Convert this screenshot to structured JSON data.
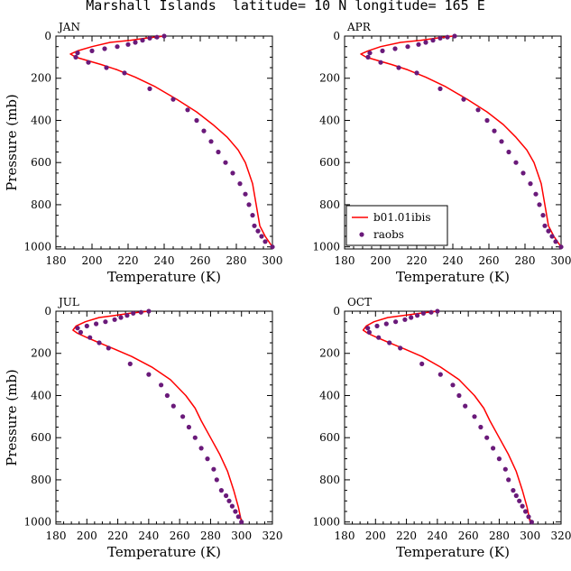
{
  "title": "Marshall Islands  latitude= 10 N longitude= 165 E",
  "colors": {
    "model": "#ff0000",
    "obs": "#6a1a7a",
    "axis": "#000000"
  },
  "chart_data": [
    {
      "type": "line",
      "panel": "JAN",
      "xlabel": "Temperature (K)",
      "ylabel": "Pressure (mb)",
      "xlim": [
        180,
        300
      ],
      "ylim": [
        1010,
        0
      ],
      "yreversed": true,
      "xticks": [
        180,
        200,
        220,
        240,
        260,
        280,
        300
      ],
      "yticks": [
        0,
        200,
        400,
        600,
        800,
        1000
      ],
      "legend": null,
      "series": [
        {
          "name": "b01.01ibis",
          "kind": "line",
          "x": [
            240,
            230,
            221,
            210,
            200,
            192,
            188,
            191,
            197,
            205,
            214,
            224,
            235,
            247,
            258,
            267,
            275,
            281,
            285,
            287,
            289,
            291,
            293,
            296,
            300
          ],
          "y": [
            0,
            10,
            20,
            30,
            50,
            70,
            85,
            100,
            115,
            135,
            160,
            195,
            240,
            300,
            360,
            420,
            480,
            540,
            600,
            650,
            700,
            800,
            900,
            950,
            1000
          ]
        },
        {
          "name": "raobs",
          "kind": "scatter",
          "x": [
            240,
            236,
            232,
            228,
            224,
            220,
            214,
            207,
            200,
            192,
            191,
            198,
            208,
            218,
            232,
            245,
            253,
            258,
            262,
            266,
            270,
            274,
            278,
            282,
            285,
            287,
            289,
            290,
            292,
            294,
            296,
            300
          ],
          "y": [
            0,
            5,
            10,
            20,
            30,
            40,
            50,
            60,
            70,
            80,
            100,
            125,
            150,
            175,
            250,
            300,
            350,
            400,
            450,
            500,
            550,
            600,
            650,
            700,
            750,
            800,
            850,
            900,
            925,
            950,
            975,
            1000
          ]
        }
      ]
    },
    {
      "type": "line",
      "panel": "APR",
      "xlabel": "Temperature (K)",
      "ylabel": "",
      "xlim": [
        180,
        300
      ],
      "ylim": [
        1010,
        0
      ],
      "yreversed": true,
      "xticks": [
        180,
        200,
        220,
        240,
        260,
        280,
        300
      ],
      "yticks": [
        0,
        200,
        400,
        600,
        800,
        1000
      ],
      "legend": "bottom-left",
      "series": [
        {
          "name": "b01.01ibis",
          "kind": "line",
          "x": [
            240,
            231,
            222,
            211,
            200,
            193,
            189,
            192,
            198,
            206,
            215,
            225,
            236,
            248,
            259,
            268,
            275,
            281,
            285,
            287,
            289,
            291,
            293,
            296,
            300
          ],
          "y": [
            0,
            10,
            20,
            30,
            50,
            70,
            85,
            100,
            115,
            135,
            160,
            195,
            240,
            300,
            360,
            420,
            480,
            540,
            600,
            650,
            700,
            800,
            900,
            950,
            1000
          ]
        },
        {
          "name": "raobs",
          "kind": "scatter",
          "x": [
            241,
            237,
            233,
            229,
            225,
            221,
            215,
            208,
            201,
            194,
            193,
            200,
            210,
            220,
            233,
            246,
            254,
            259,
            263,
            267,
            271,
            275,
            279,
            283,
            286,
            288,
            290,
            291,
            293,
            295,
            297,
            300
          ],
          "y": [
            0,
            5,
            10,
            20,
            30,
            40,
            50,
            60,
            70,
            80,
            100,
            125,
            150,
            175,
            250,
            300,
            350,
            400,
            450,
            500,
            550,
            600,
            650,
            700,
            750,
            800,
            850,
            900,
            925,
            950,
            975,
            1000
          ]
        }
      ]
    },
    {
      "type": "line",
      "panel": "JUL",
      "xlabel": "Temperature (K)",
      "ylabel": "Pressure (mb)",
      "xlim": [
        180,
        320
      ],
      "ylim": [
        1010,
        0
      ],
      "yreversed": true,
      "xticks": [
        180,
        200,
        220,
        240,
        260,
        280,
        300,
        320
      ],
      "yticks": [
        0,
        200,
        400,
        600,
        800,
        1000
      ],
      "legend": null,
      "series": [
        {
          "name": "b01.01ibis",
          "kind": "line",
          "x": [
            240,
            228,
            218,
            208,
            199,
            193,
            191,
            194,
            200,
            208,
            218,
            229,
            242,
            254,
            264,
            270,
            274,
            280,
            286,
            291,
            295,
            298,
            300
          ],
          "y": [
            0,
            10,
            20,
            30,
            50,
            70,
            90,
            105,
            125,
            150,
            180,
            215,
            265,
            325,
            400,
            460,
            520,
            600,
            680,
            760,
            850,
            930,
            1000
          ]
        },
        {
          "name": "raobs",
          "kind": "scatter",
          "x": [
            240,
            235,
            230,
            226,
            222,
            218,
            212,
            206,
            200,
            194,
            196,
            202,
            208,
            214,
            228,
            240,
            248,
            252,
            256,
            262,
            266,
            270,
            274,
            278,
            282,
            284,
            287,
            290,
            292,
            294,
            296,
            298,
            300
          ],
          "y": [
            0,
            5,
            10,
            20,
            30,
            40,
            50,
            60,
            70,
            80,
            100,
            125,
            150,
            175,
            250,
            300,
            350,
            400,
            450,
            500,
            550,
            600,
            650,
            700,
            750,
            800,
            850,
            875,
            900,
            925,
            950,
            975,
            1000
          ]
        }
      ]
    },
    {
      "type": "line",
      "panel": "OCT",
      "xlabel": "Temperature (K)",
      "ylabel": "",
      "xlim": [
        180,
        320
      ],
      "ylim": [
        1010,
        0
      ],
      "yreversed": true,
      "xticks": [
        180,
        200,
        220,
        240,
        260,
        280,
        300,
        320
      ],
      "yticks": [
        0,
        200,
        400,
        600,
        800,
        1000
      ],
      "legend": null,
      "series": [
        {
          "name": "b01.01ibis",
          "kind": "line",
          "x": [
            240,
            229,
            218,
            208,
            199,
            194,
            192,
            195,
            201,
            209,
            219,
            230,
            242,
            254,
            264,
            270,
            274,
            280,
            286,
            291,
            295,
            298,
            300
          ],
          "y": [
            0,
            10,
            20,
            30,
            50,
            70,
            90,
            105,
            125,
            150,
            180,
            215,
            265,
            325,
            400,
            460,
            520,
            600,
            680,
            760,
            850,
            930,
            1000
          ]
        },
        {
          "name": "raobs",
          "kind": "scatter",
          "x": [
            240,
            236,
            231,
            227,
            223,
            219,
            213,
            207,
            201,
            195,
            196,
            202,
            209,
            216,
            230,
            242,
            250,
            254,
            258,
            264,
            268,
            272,
            276,
            280,
            284,
            286,
            289,
            291,
            293,
            295,
            297,
            299,
            301
          ],
          "y": [
            0,
            5,
            10,
            20,
            30,
            40,
            50,
            60,
            70,
            80,
            100,
            125,
            150,
            175,
            250,
            300,
            350,
            400,
            450,
            500,
            550,
            600,
            650,
            700,
            750,
            800,
            850,
            875,
            900,
            925,
            950,
            975,
            1000
          ]
        }
      ]
    }
  ]
}
